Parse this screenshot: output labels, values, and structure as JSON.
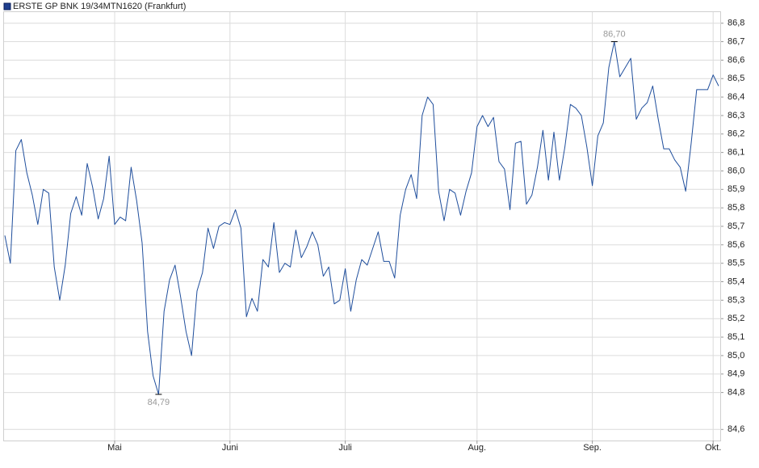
{
  "chart_data": {
    "type": "line",
    "title": "ERSTE GP BNK 19/34MTN1620 (Frankfurt)",
    "categories": [
      null,
      null,
      null,
      null,
      null,
      null,
      null,
      null,
      null,
      null,
      null,
      null,
      null,
      null,
      null,
      null,
      null,
      null,
      null,
      null,
      "Mai",
      null,
      null,
      null,
      null,
      null,
      null,
      null,
      null,
      null,
      null,
      null,
      null,
      null,
      null,
      null,
      null,
      null,
      null,
      null,
      null,
      "Juni",
      null,
      null,
      null,
      null,
      null,
      null,
      null,
      null,
      null,
      null,
      null,
      null,
      null,
      null,
      null,
      null,
      null,
      null,
      null,
      null,
      "Juli",
      null,
      null,
      null,
      null,
      null,
      null,
      null,
      null,
      null,
      null,
      null,
      null,
      null,
      null,
      null,
      null,
      null,
      null,
      null,
      null,
      null,
      null,
      null,
      "Aug.",
      null,
      null,
      null,
      null,
      null,
      null,
      null,
      null,
      null,
      null,
      null,
      null,
      null,
      null,
      null,
      null,
      null,
      null,
      null,
      null,
      "Sep.",
      null,
      null,
      null,
      null,
      null,
      null,
      null,
      null,
      null,
      null,
      null,
      null,
      null,
      null,
      null,
      null,
      null,
      null,
      null,
      null,
      null,
      "Okt.",
      null
    ],
    "series": [
      {
        "name": "ERSTE GP BNK 19/34MTN1620 (Frankfurt)",
        "color": "#1f4e9c",
        "values": [
          85.65,
          85.5,
          86.11,
          86.17,
          85.99,
          85.87,
          85.71,
          85.9,
          85.88,
          85.48,
          85.3,
          85.49,
          85.77,
          85.86,
          85.76,
          86.04,
          85.91,
          85.74,
          85.85,
          86.08,
          85.71,
          85.75,
          85.73,
          86.02,
          85.84,
          85.61,
          85.13,
          84.89,
          84.79,
          85.24,
          85.41,
          85.49,
          85.32,
          85.13,
          85.0,
          85.35,
          85.45,
          85.69,
          85.58,
          85.7,
          85.72,
          85.71,
          85.79,
          85.69,
          85.21,
          85.31,
          85.24,
          85.52,
          85.48,
          85.72,
          85.45,
          85.5,
          85.48,
          85.68,
          85.53,
          85.59,
          85.67,
          85.6,
          85.43,
          85.48,
          85.28,
          85.3,
          85.47,
          85.24,
          85.41,
          85.52,
          85.49,
          85.58,
          85.67,
          85.51,
          85.51,
          85.42,
          85.76,
          85.9,
          85.98,
          85.85,
          86.3,
          86.4,
          86.36,
          85.89,
          85.73,
          85.9,
          85.88,
          85.76,
          85.89,
          85.99,
          86.24,
          86.3,
          86.24,
          86.29,
          86.05,
          86.01,
          85.79,
          86.15,
          86.16,
          85.82,
          85.87,
          86.02,
          86.22,
          85.95,
          86.21,
          85.95,
          86.13,
          86.36,
          86.34,
          86.3,
          86.13,
          85.92,
          86.19,
          86.26,
          86.56,
          86.7,
          86.51,
          86.56,
          86.61,
          86.28,
          86.34,
          86.37,
          86.46,
          86.28,
          86.12,
          86.12,
          86.06,
          86.02,
          85.89,
          86.15,
          86.44,
          86.44,
          86.44,
          86.52,
          86.46
        ]
      }
    ],
    "annotations": [
      {
        "value": 86.7,
        "label": "86,70"
      },
      {
        "value": 84.79,
        "label": "84,79"
      }
    ],
    "ylim": [
      84.54,
      86.86
    ],
    "yticks": [
      {
        "value": 84.6,
        "label": "84,6"
      },
      {
        "value": 84.8,
        "label": "84,8"
      },
      {
        "value": 84.9,
        "label": "84,9"
      },
      {
        "value": 85.0,
        "label": "85,0"
      },
      {
        "value": 85.1,
        "label": "85,1"
      },
      {
        "value": 85.2,
        "label": "85,2"
      },
      {
        "value": 85.3,
        "label": "85,3"
      },
      {
        "value": 85.4,
        "label": "85,4"
      },
      {
        "value": 85.5,
        "label": "85,5"
      },
      {
        "value": 85.6,
        "label": "85,6"
      },
      {
        "value": 85.7,
        "label": "85,7"
      },
      {
        "value": 85.8,
        "label": "85,8"
      },
      {
        "value": 85.9,
        "label": "85,9"
      },
      {
        "value": 86.0,
        "label": "86,0"
      },
      {
        "value": 86.1,
        "label": "86,1"
      },
      {
        "value": 86.2,
        "label": "86,2"
      },
      {
        "value": 86.3,
        "label": "86,3"
      },
      {
        "value": 86.4,
        "label": "86,4"
      },
      {
        "value": 86.5,
        "label": "86,5"
      },
      {
        "value": 86.6,
        "label": "86,6"
      },
      {
        "value": 86.7,
        "label": "86,7"
      },
      {
        "value": 86.8,
        "label": "86,8"
      }
    ],
    "grid": true
  }
}
